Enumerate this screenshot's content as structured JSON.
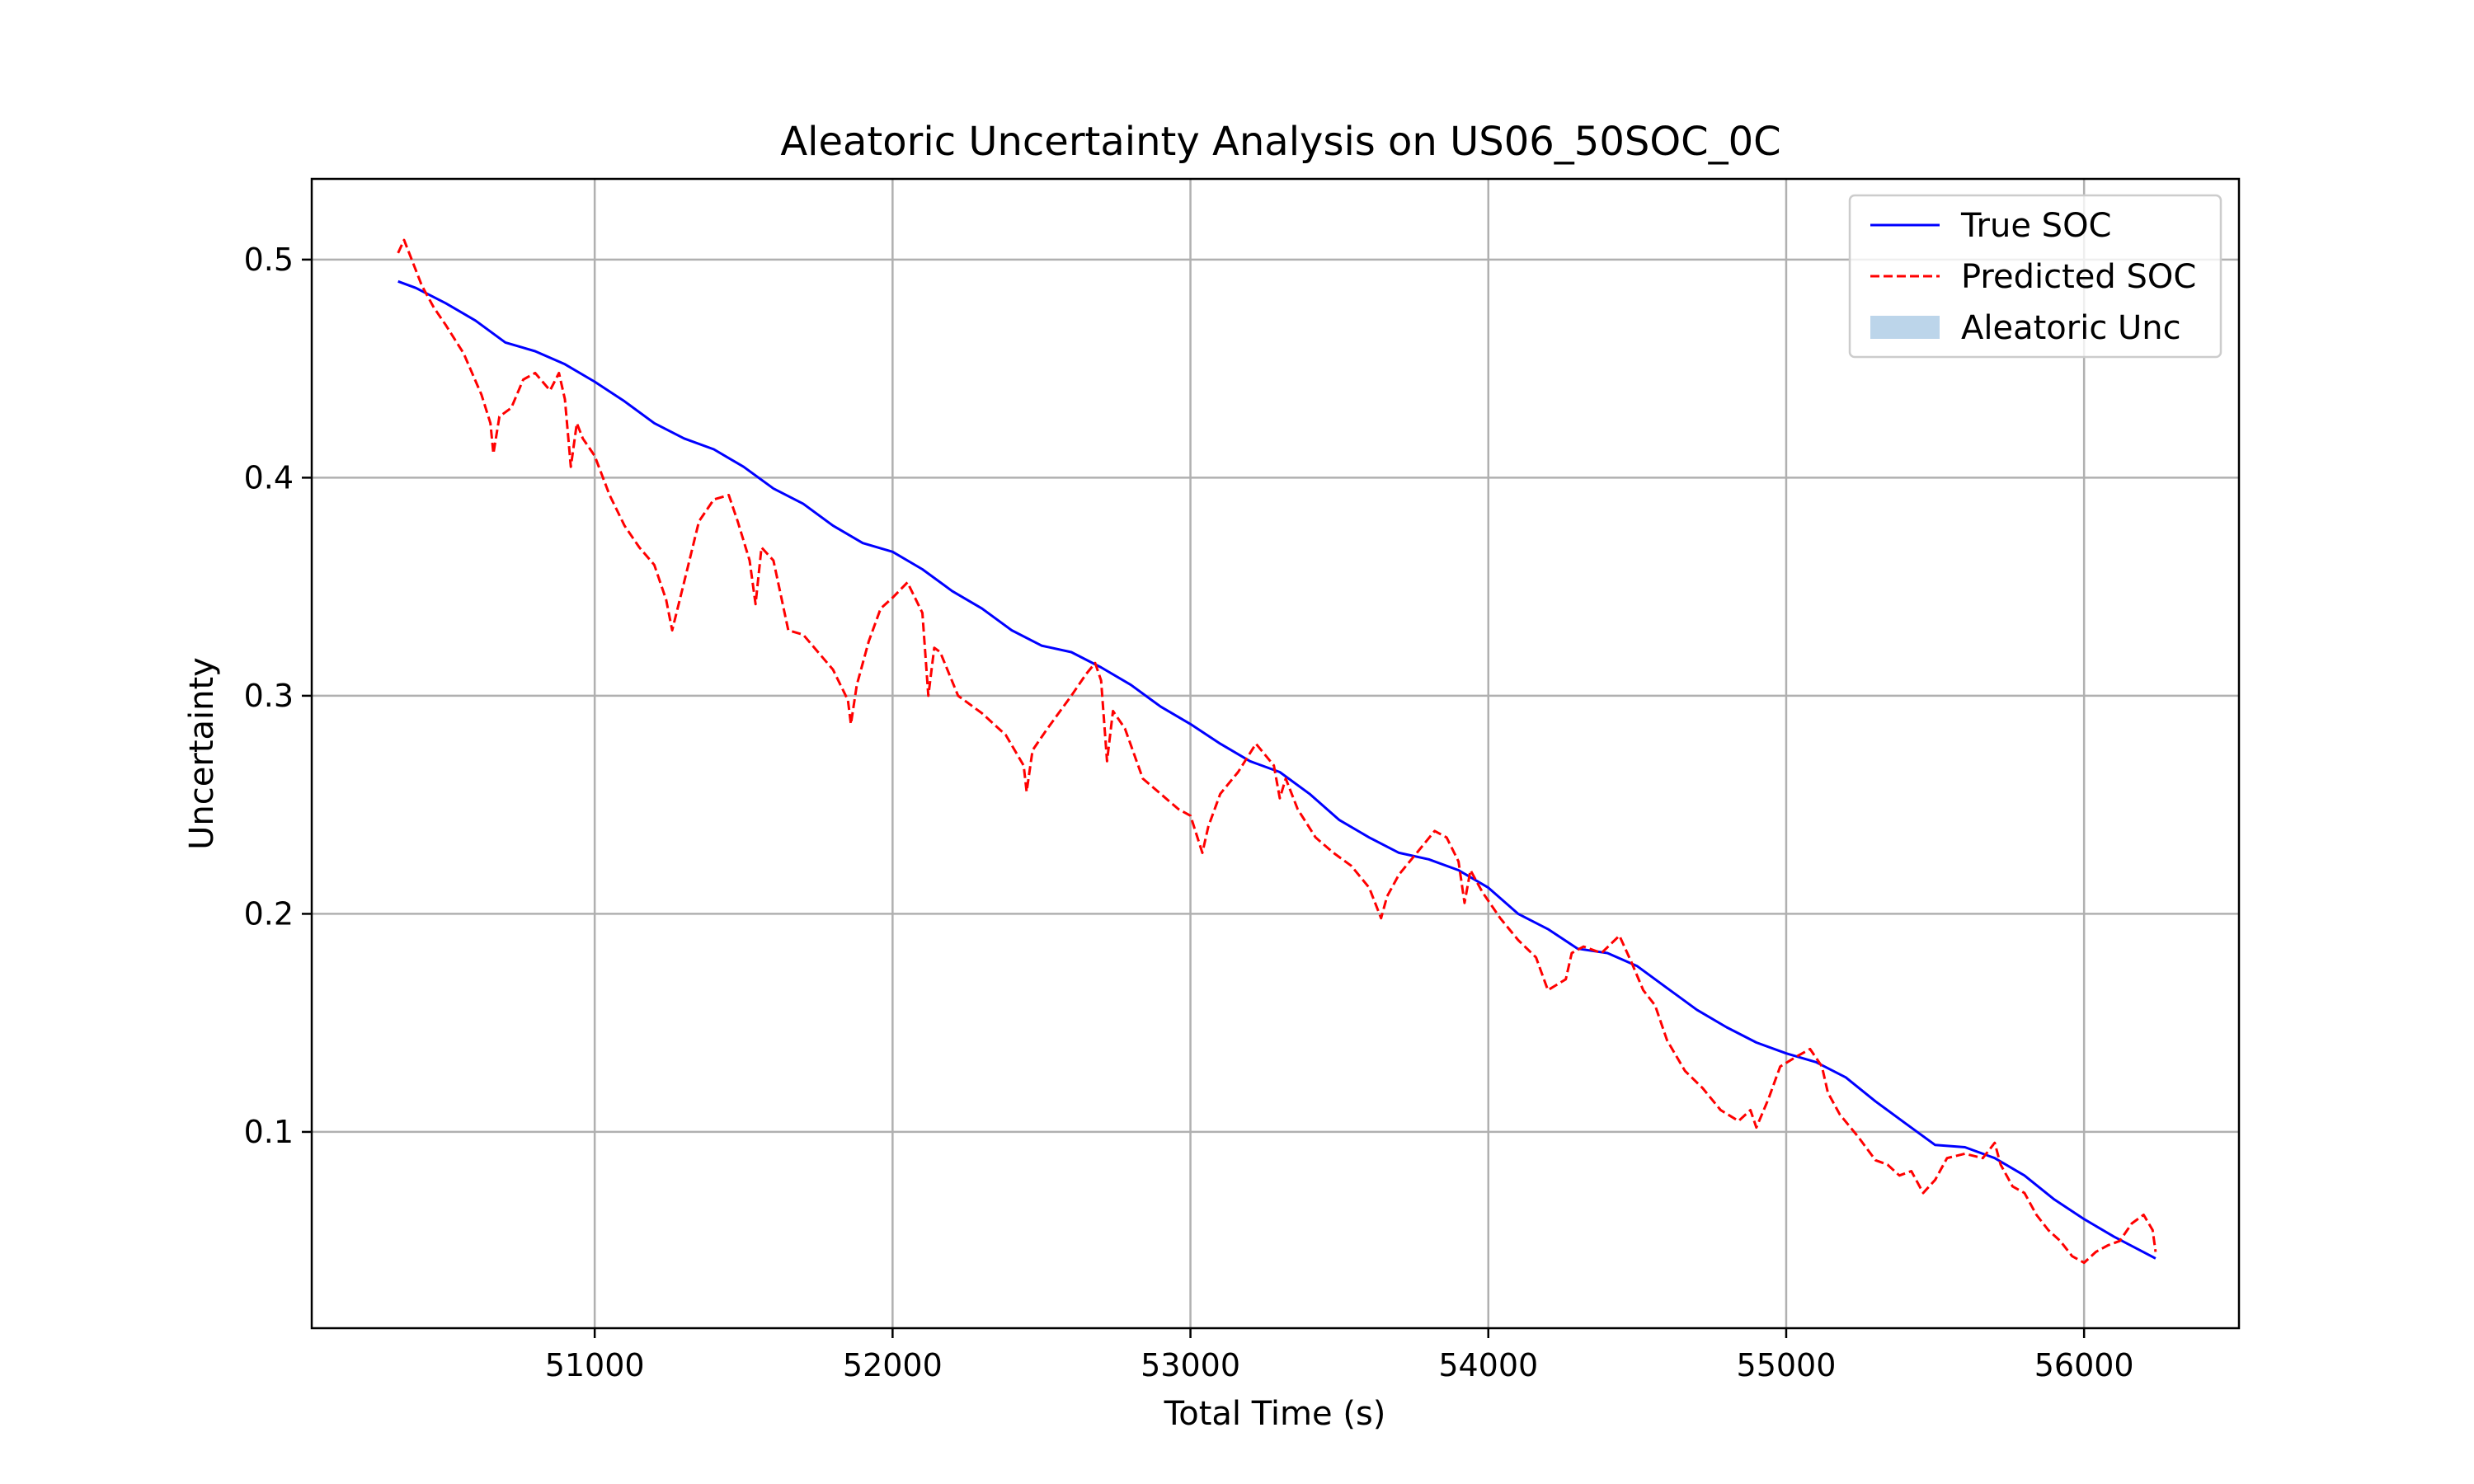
{
  "chart_data": {
    "type": "line",
    "title": "Aleatoric Uncertainty Analysis on US06_50SOC_0C",
    "xlabel": "Total Time (s)",
    "ylabel": "Uncertainty",
    "xlim": [
      50050,
      56520
    ],
    "ylim": [
      0.01,
      0.537
    ],
    "x_ticks": [
      51000,
      52000,
      53000,
      54000,
      55000,
      56000
    ],
    "y_ticks": [
      0.1,
      0.2,
      0.3,
      0.4,
      0.5
    ],
    "x_tick_labels": [
      "51000",
      "52000",
      "53000",
      "54000",
      "55000",
      "56000"
    ],
    "y_tick_labels": [
      "0.1",
      "0.2",
      "0.3",
      "0.4",
      "0.5"
    ],
    "grid": true,
    "legend_position": "top-right",
    "series": [
      {
        "name": "True SOC",
        "color": "#0000ff",
        "style": "solid",
        "x": [
          50340,
          50400,
          50500,
          50600,
          50700,
          50800,
          50900,
          51000,
          51100,
          51200,
          51300,
          51400,
          51500,
          51600,
          51700,
          51800,
          51900,
          52000,
          52100,
          52200,
          52300,
          52400,
          52500,
          52600,
          52700,
          52800,
          52900,
          53000,
          53100,
          53200,
          53300,
          53400,
          53500,
          53600,
          53700,
          53800,
          53900,
          54000,
          54100,
          54200,
          54300,
          54400,
          54500,
          54600,
          54700,
          54800,
          54900,
          55000,
          55100,
          55200,
          55300,
          55400,
          55500,
          55600,
          55700,
          55800,
          55900,
          56000,
          56100,
          56240
        ],
        "y": [
          0.49,
          0.487,
          0.48,
          0.472,
          0.462,
          0.458,
          0.452,
          0.444,
          0.435,
          0.425,
          0.418,
          0.413,
          0.405,
          0.395,
          0.388,
          0.378,
          0.37,
          0.366,
          0.358,
          0.348,
          0.34,
          0.33,
          0.323,
          0.32,
          0.313,
          0.305,
          0.295,
          0.287,
          0.278,
          0.27,
          0.265,
          0.255,
          0.243,
          0.235,
          0.228,
          0.225,
          0.22,
          0.212,
          0.2,
          0.193,
          0.184,
          0.182,
          0.176,
          0.166,
          0.156,
          0.148,
          0.141,
          0.136,
          0.132,
          0.125,
          0.114,
          0.104,
          0.094,
          0.093,
          0.088,
          0.08,
          0.069,
          0.06,
          0.052,
          0.042
        ]
      },
      {
        "name": "Predicted SOC",
        "color": "#ff0000",
        "style": "dashed",
        "x": [
          50340,
          50360,
          50380,
          50400,
          50420,
          50460,
          50500,
          50560,
          50620,
          50650,
          50660,
          50680,
          50720,
          50760,
          50800,
          50850,
          50880,
          50900,
          50920,
          50940,
          50960,
          51000,
          51050,
          51100,
          51150,
          51200,
          51240,
          51260,
          51300,
          51350,
          51400,
          51450,
          51480,
          51520,
          51540,
          51560,
          51600,
          51650,
          51700,
          51750,
          51800,
          51850,
          51860,
          51880,
          51920,
          51960,
          52000,
          52050,
          52100,
          52120,
          52140,
          52160,
          52220,
          52300,
          52380,
          52440,
          52450,
          52470,
          52520,
          52600,
          52650,
          52680,
          52700,
          52720,
          52740,
          52780,
          52840,
          52900,
          52960,
          53000,
          53040,
          53060,
          53100,
          53160,
          53220,
          53280,
          53300,
          53320,
          53360,
          53420,
          53480,
          53540,
          53600,
          53640,
          53660,
          53700,
          53760,
          53820,
          53860,
          53900,
          53920,
          53940,
          53980,
          54040,
          54100,
          54160,
          54200,
          54260,
          54280,
          54320,
          54380,
          54440,
          54480,
          54520,
          54560,
          54600,
          54660,
          54720,
          54780,
          54840,
          54880,
          54900,
          54940,
          54980,
          55040,
          55080,
          55120,
          55140,
          55180,
          55240,
          55300,
          55340,
          55380,
          55420,
          55460,
          55500,
          55540,
          55600,
          55660,
          55700,
          55720,
          55760,
          55800,
          55840,
          55880,
          55920,
          55960,
          56000,
          56040,
          56080,
          56120,
          56160,
          56200,
          56230,
          56240
        ],
        "y": [
          0.503,
          0.509,
          0.502,
          0.495,
          0.488,
          0.478,
          0.47,
          0.457,
          0.438,
          0.425,
          0.411,
          0.428,
          0.432,
          0.445,
          0.448,
          0.44,
          0.448,
          0.436,
          0.405,
          0.425,
          0.418,
          0.41,
          0.392,
          0.378,
          0.368,
          0.36,
          0.344,
          0.33,
          0.352,
          0.38,
          0.39,
          0.392,
          0.38,
          0.362,
          0.342,
          0.368,
          0.362,
          0.33,
          0.328,
          0.32,
          0.312,
          0.298,
          0.287,
          0.305,
          0.325,
          0.34,
          0.345,
          0.352,
          0.338,
          0.3,
          0.322,
          0.32,
          0.3,
          0.292,
          0.282,
          0.268,
          0.256,
          0.275,
          0.285,
          0.3,
          0.31,
          0.315,
          0.307,
          0.27,
          0.293,
          0.285,
          0.262,
          0.255,
          0.248,
          0.245,
          0.228,
          0.24,
          0.255,
          0.265,
          0.278,
          0.268,
          0.253,
          0.262,
          0.248,
          0.235,
          0.228,
          0.222,
          0.212,
          0.198,
          0.208,
          0.218,
          0.228,
          0.238,
          0.235,
          0.224,
          0.205,
          0.22,
          0.21,
          0.198,
          0.188,
          0.18,
          0.165,
          0.17,
          0.182,
          0.185,
          0.182,
          0.19,
          0.178,
          0.165,
          0.158,
          0.142,
          0.128,
          0.12,
          0.11,
          0.105,
          0.11,
          0.102,
          0.115,
          0.13,
          0.135,
          0.138,
          0.13,
          0.118,
          0.108,
          0.098,
          0.087,
          0.085,
          0.08,
          0.082,
          0.072,
          0.078,
          0.088,
          0.09,
          0.088,
          0.095,
          0.085,
          0.075,
          0.072,
          0.062,
          0.055,
          0.05,
          0.043,
          0.04,
          0.045,
          0.048,
          0.05,
          0.058,
          0.062,
          0.055,
          0.045
        ]
      }
    ],
    "legend": [
      {
        "label": "True SOC",
        "kind": "line",
        "color": "#0000ff"
      },
      {
        "label": "Predicted SOC",
        "kind": "dashed",
        "color": "#ff0000"
      },
      {
        "label": "Aleatoric Unc",
        "kind": "patch",
        "color": "#bcd5ea"
      }
    ]
  }
}
